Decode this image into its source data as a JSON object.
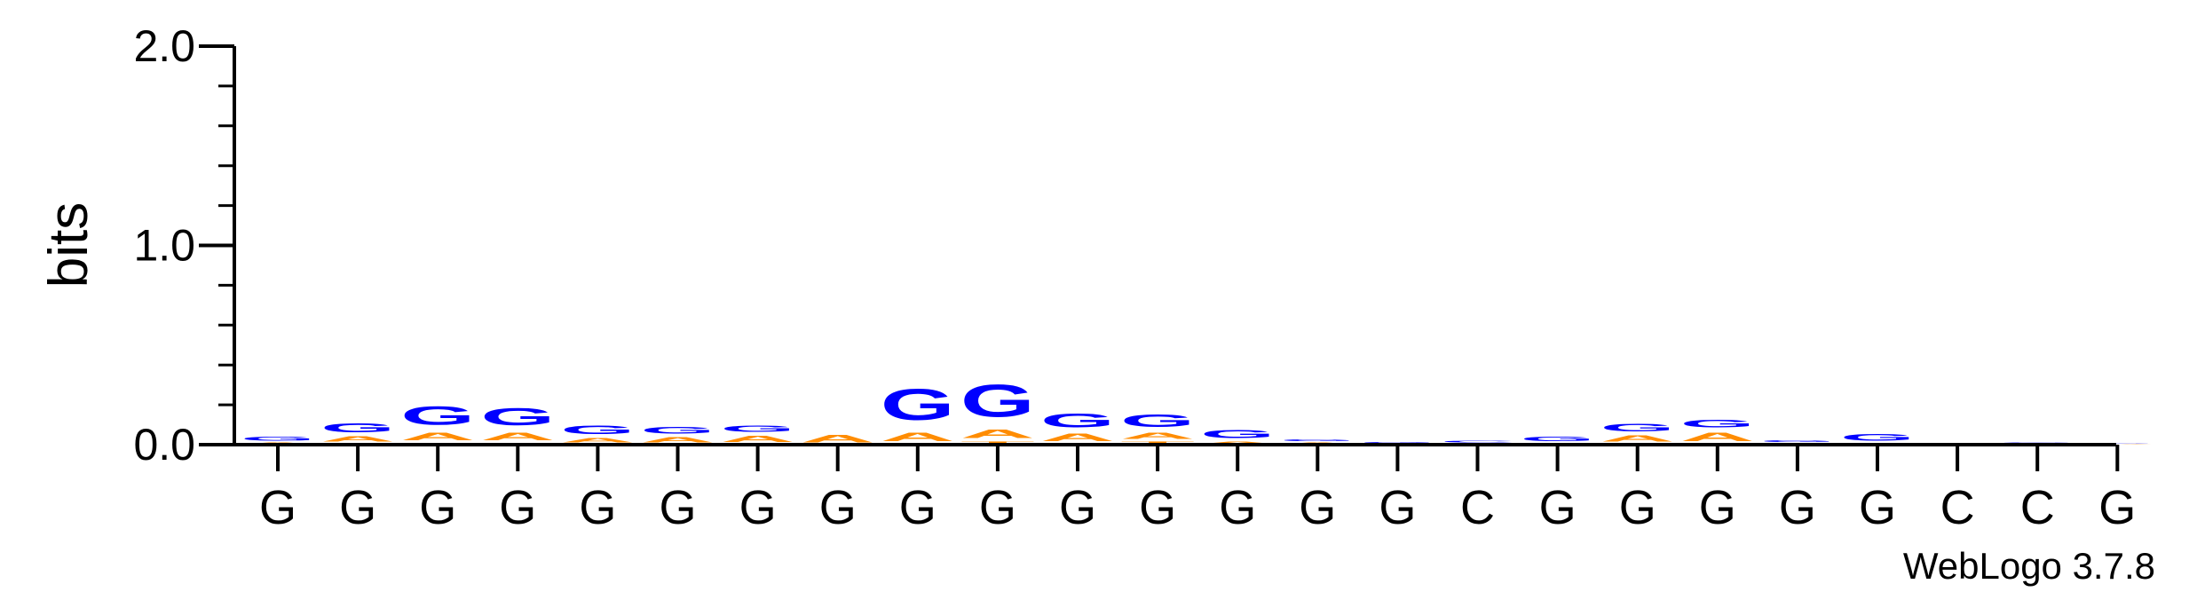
{
  "chart_data": {
    "type": "sequence-logo",
    "ylabel": "bits",
    "ylim": [
      0,
      2.0
    ],
    "yticks": [
      "0.0",
      "1.0",
      "2.0"
    ],
    "yminor_step": 0.2,
    "credit": "WebLogo 3.7.8",
    "colors": {
      "G": "#0000ff",
      "A": "#ff8c00",
      "T": "#ff8c00",
      "C": "#0000ff"
    },
    "positions": [
      {
        "label": "G",
        "stack": [
          {
            "letter": "A",
            "bits": 0.015
          },
          {
            "letter": "G",
            "bits": 0.03
          }
        ]
      },
      {
        "label": "G",
        "stack": [
          {
            "letter": "C",
            "bits": 0.008
          },
          {
            "letter": "A",
            "bits": 0.04
          },
          {
            "letter": "G",
            "bits": 0.075
          }
        ]
      },
      {
        "label": "G",
        "stack": [
          {
            "letter": "C",
            "bits": 0.01
          },
          {
            "letter": "A",
            "bits": 0.06
          },
          {
            "letter": "G",
            "bits": 0.15
          }
        ]
      },
      {
        "label": "G",
        "stack": [
          {
            "letter": "C",
            "bits": 0.01
          },
          {
            "letter": "A",
            "bits": 0.06
          },
          {
            "letter": "G",
            "bits": 0.14
          }
        ]
      },
      {
        "label": "G",
        "stack": [
          {
            "letter": "C",
            "bits": 0.005
          },
          {
            "letter": "A",
            "bits": 0.035
          },
          {
            "letter": "G",
            "bits": 0.07
          }
        ]
      },
      {
        "label": "G",
        "stack": [
          {
            "letter": "C",
            "bits": 0.004
          },
          {
            "letter": "A",
            "bits": 0.04
          },
          {
            "letter": "G",
            "bits": 0.055
          }
        ]
      },
      {
        "label": "G",
        "stack": [
          {
            "letter": "C",
            "bits": 0.004
          },
          {
            "letter": "A",
            "bits": 0.05
          },
          {
            "letter": "G",
            "bits": 0.05
          }
        ]
      },
      {
        "label": "G",
        "stack": [
          {
            "letter": "A",
            "bits": 0.06
          }
        ]
      },
      {
        "label": "G",
        "stack": [
          {
            "letter": "C",
            "bits": 0.005
          },
          {
            "letter": "A",
            "bits": 0.07
          },
          {
            "letter": "G",
            "bits": 0.25
          }
        ]
      },
      {
        "label": "G",
        "stack": [
          {
            "letter": "T",
            "bits": 0.02
          },
          {
            "letter": "A",
            "bits": 0.07
          },
          {
            "letter": "G",
            "bits": 0.26
          }
        ]
      },
      {
        "label": "G",
        "stack": [
          {
            "letter": "T",
            "bits": 0.005
          },
          {
            "letter": "A",
            "bits": 0.06
          },
          {
            "letter": "G",
            "bits": 0.11
          }
        ]
      },
      {
        "label": "G",
        "stack": [
          {
            "letter": "T",
            "bits": 0.02
          },
          {
            "letter": "A",
            "bits": 0.05
          },
          {
            "letter": "G",
            "bits": 0.1
          }
        ]
      },
      {
        "label": "G",
        "stack": [
          {
            "letter": "A",
            "bits": 0.02
          },
          {
            "letter": "G",
            "bits": 0.065
          }
        ]
      },
      {
        "label": "G",
        "stack": [
          {
            "letter": "A",
            "bits": 0.015
          },
          {
            "letter": "G",
            "bits": 0.015
          }
        ]
      },
      {
        "label": "G",
        "stack": [
          {
            "letter": "A",
            "bits": 0.005
          },
          {
            "letter": "G",
            "bits": 0.01
          }
        ]
      },
      {
        "label": "C",
        "stack": [
          {
            "letter": "A",
            "bits": 0.008
          },
          {
            "letter": "C",
            "bits": 0.012
          }
        ]
      },
      {
        "label": "G",
        "stack": [
          {
            "letter": "A",
            "bits": 0.01
          },
          {
            "letter": "G",
            "bits": 0.035
          }
        ]
      },
      {
        "label": "G",
        "stack": [
          {
            "letter": "C",
            "bits": 0.005
          },
          {
            "letter": "A",
            "bits": 0.05
          },
          {
            "letter": "G",
            "bits": 0.06
          }
        ]
      },
      {
        "label": "G",
        "stack": [
          {
            "letter": "C",
            "bits": 0.005
          },
          {
            "letter": "A",
            "bits": 0.07
          },
          {
            "letter": "G",
            "bits": 0.06
          }
        ]
      },
      {
        "label": "G",
        "stack": [
          {
            "letter": "A",
            "bits": 0.01
          },
          {
            "letter": "G",
            "bits": 0.012
          }
        ]
      },
      {
        "label": "G",
        "stack": [
          {
            "letter": "A",
            "bits": 0.01
          },
          {
            "letter": "G",
            "bits": 0.055
          }
        ]
      },
      {
        "label": "C",
        "stack": [
          {
            "letter": "A",
            "bits": 0.006
          },
          {
            "letter": "G",
            "bits": 0.004
          }
        ]
      },
      {
        "label": "C",
        "stack": [
          {
            "letter": "A",
            "bits": 0.008
          },
          {
            "letter": "G",
            "bits": 0.002
          }
        ]
      },
      {
        "label": "G",
        "stack": [
          {
            "letter": "A",
            "bits": 0.004
          },
          {
            "letter": "G",
            "bits": 0.004
          }
        ]
      }
    ]
  }
}
